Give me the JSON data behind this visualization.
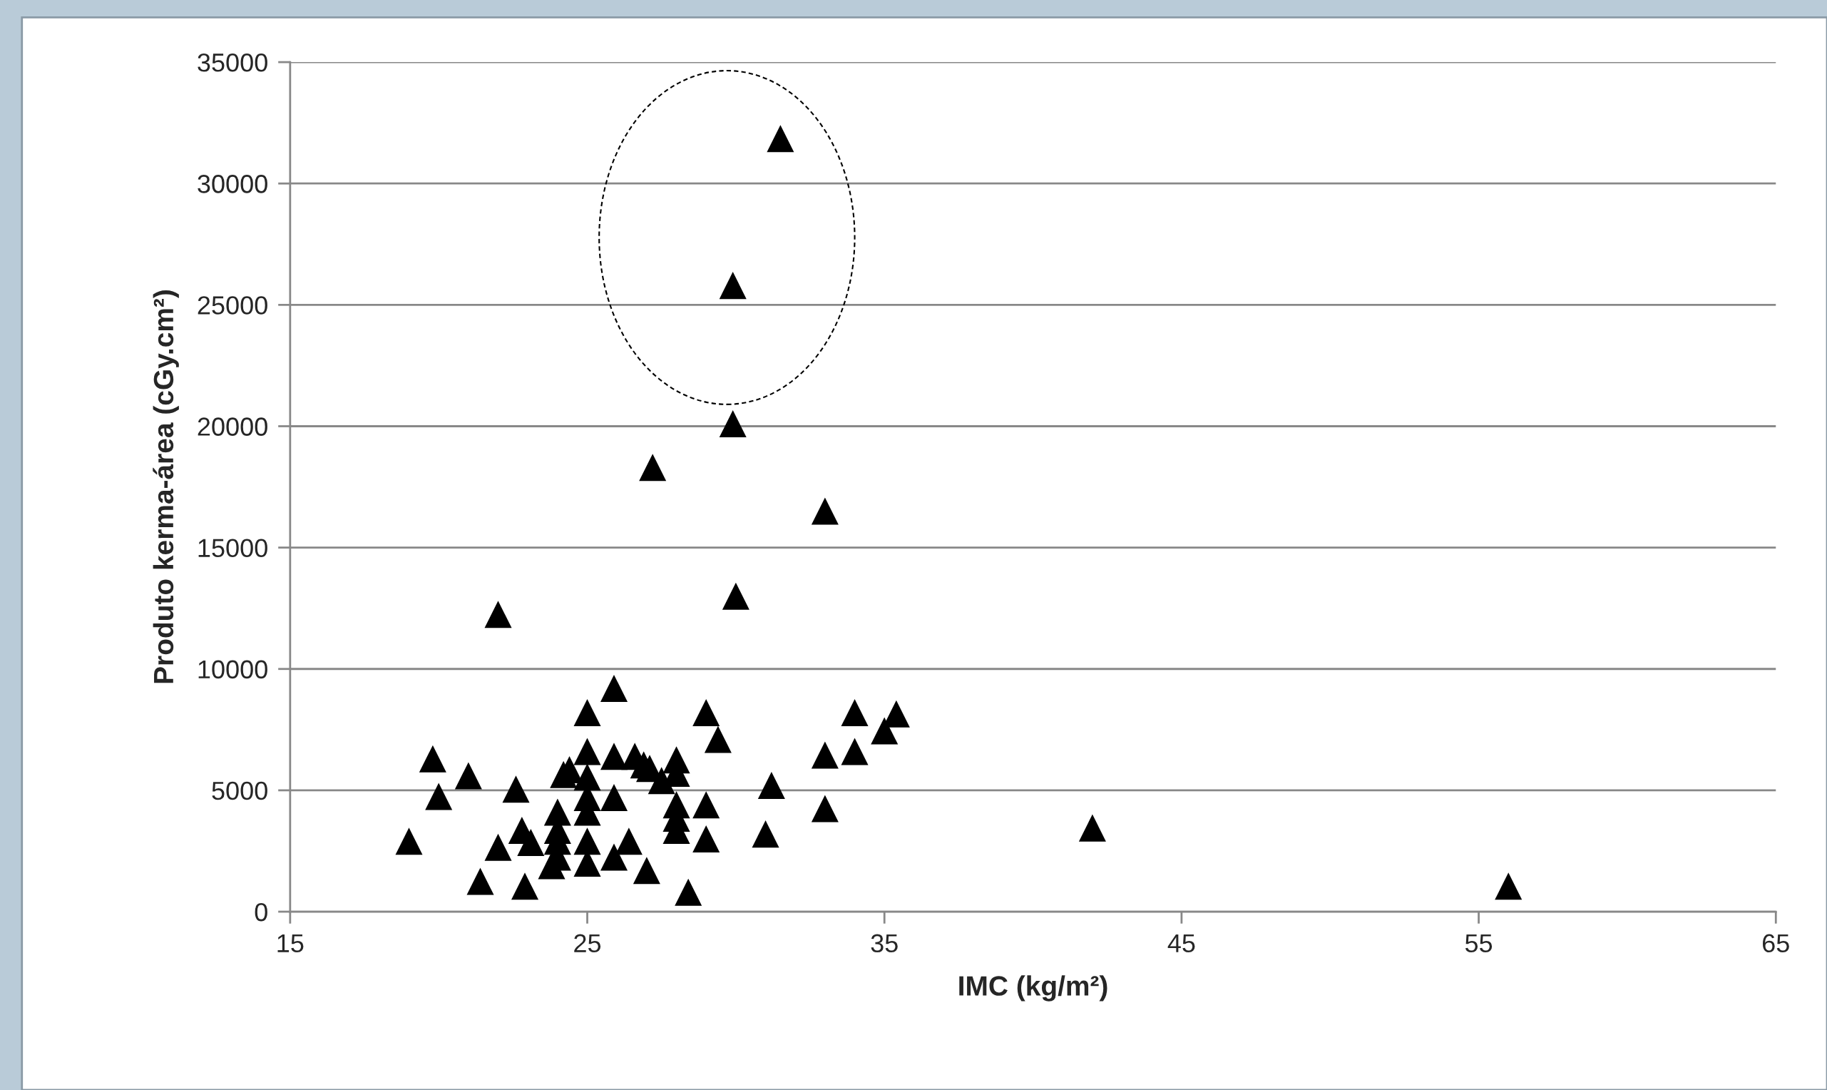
{
  "chart_data": {
    "type": "scatter",
    "xlabel": "IMC (kg/m²)",
    "ylabel": "Produto kerma-área (cGy.cm²)",
    "xlim": [
      15,
      65
    ],
    "xticks": [
      15,
      25,
      35,
      45,
      55,
      65
    ],
    "ylim": [
      0,
      35000
    ],
    "yticks": [
      0,
      5000,
      10000,
      15000,
      20000,
      25000,
      30000,
      35000
    ],
    "grid": "y",
    "marker": "triangle",
    "legend": false,
    "series": [
      {
        "color": "#000000",
        "x": [
          19.0,
          19.8,
          20.0,
          21.0,
          21.4,
          22.0,
          22.0,
          22.6,
          22.8,
          22.9,
          23.1,
          23.8,
          24.0,
          24.0,
          24.0,
          24.0,
          24.2,
          24.4,
          25.0,
          25.0,
          25.0,
          25.0,
          25.0,
          25.0,
          25.0,
          25.9,
          25.9,
          25.9,
          25.9,
          26.4,
          26.6,
          26.9,
          27.0,
          27.2,
          27.1,
          27.5,
          28.0,
          28.0,
          28.0,
          28.0,
          28.0,
          28.4,
          29.0,
          29.0,
          29.0,
          29.4,
          29.9,
          29.9,
          30.0,
          31.0,
          31.2,
          31.5,
          33.0,
          33.0,
          33.0,
          34.0,
          34.0,
          35.0,
          35.4,
          42.0,
          56.0
        ],
        "values": [
          2900,
          6300,
          4750,
          5600,
          1250,
          2650,
          12250,
          5050,
          3350,
          1050,
          2850,
          1900,
          4100,
          3350,
          2900,
          2250,
          5650,
          5850,
          8200,
          6600,
          5550,
          4700,
          4100,
          2900,
          2000,
          9200,
          6400,
          4700,
          2250,
          2900,
          6400,
          6050,
          1700,
          18300,
          5900,
          5400,
          6250,
          5700,
          4400,
          3850,
          3350,
          800,
          8200,
          4400,
          3000,
          7100,
          25800,
          20100,
          13000,
          3200,
          5200,
          31850,
          16500,
          6450,
          4250,
          8200,
          6600,
          7450,
          8150,
          3450,
          1050
        ]
      }
    ]
  }
}
